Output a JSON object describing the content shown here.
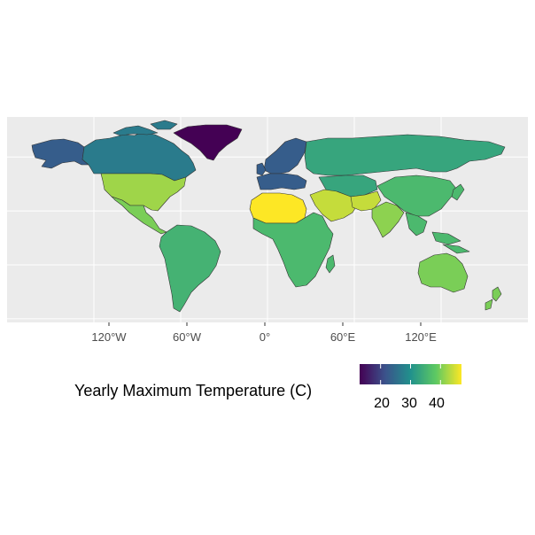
{
  "map": {
    "x_axis": {
      "ticks": [
        "120°W",
        "60°W",
        "0°",
        "60°E",
        "120°E"
      ],
      "tick_values": [
        -120,
        -60,
        0,
        60,
        120
      ]
    },
    "y_grid_values": [
      -60,
      -30,
      0,
      30,
      60
    ],
    "panel_color": "#ebebeb",
    "grid_color": "#ffffff",
    "border_color": "#333333"
  },
  "legend": {
    "title": "Yearly Maximum Temperature (C)",
    "ticks": [
      "20",
      "30",
      "40"
    ],
    "tick_values": [
      20,
      30,
      40
    ],
    "range": [
      13,
      47
    ],
    "palette": [
      "#440154",
      "#3b528b",
      "#21918c",
      "#5ec962",
      "#fde725"
    ]
  },
  "regions": [
    {
      "name": "Greenland",
      "value": 13
    },
    {
      "name": "Scandinavia",
      "value": 23
    },
    {
      "name": "Canada",
      "value": 27
    },
    {
      "name": "Alaska",
      "value": 38
    },
    {
      "name": "United States",
      "value": 42
    },
    {
      "name": "Mexico",
      "value": 40
    },
    {
      "name": "Russia",
      "value": 33
    },
    {
      "name": "North Africa",
      "value": 47
    },
    {
      "name": "Arabian Peninsula",
      "value": 44
    },
    {
      "name": "India",
      "value": 41
    },
    {
      "name": "China",
      "value": 36
    },
    {
      "name": "Australia",
      "value": 40
    },
    {
      "name": "South America",
      "value": 35
    },
    {
      "name": "Central Africa",
      "value": 36
    }
  ]
}
